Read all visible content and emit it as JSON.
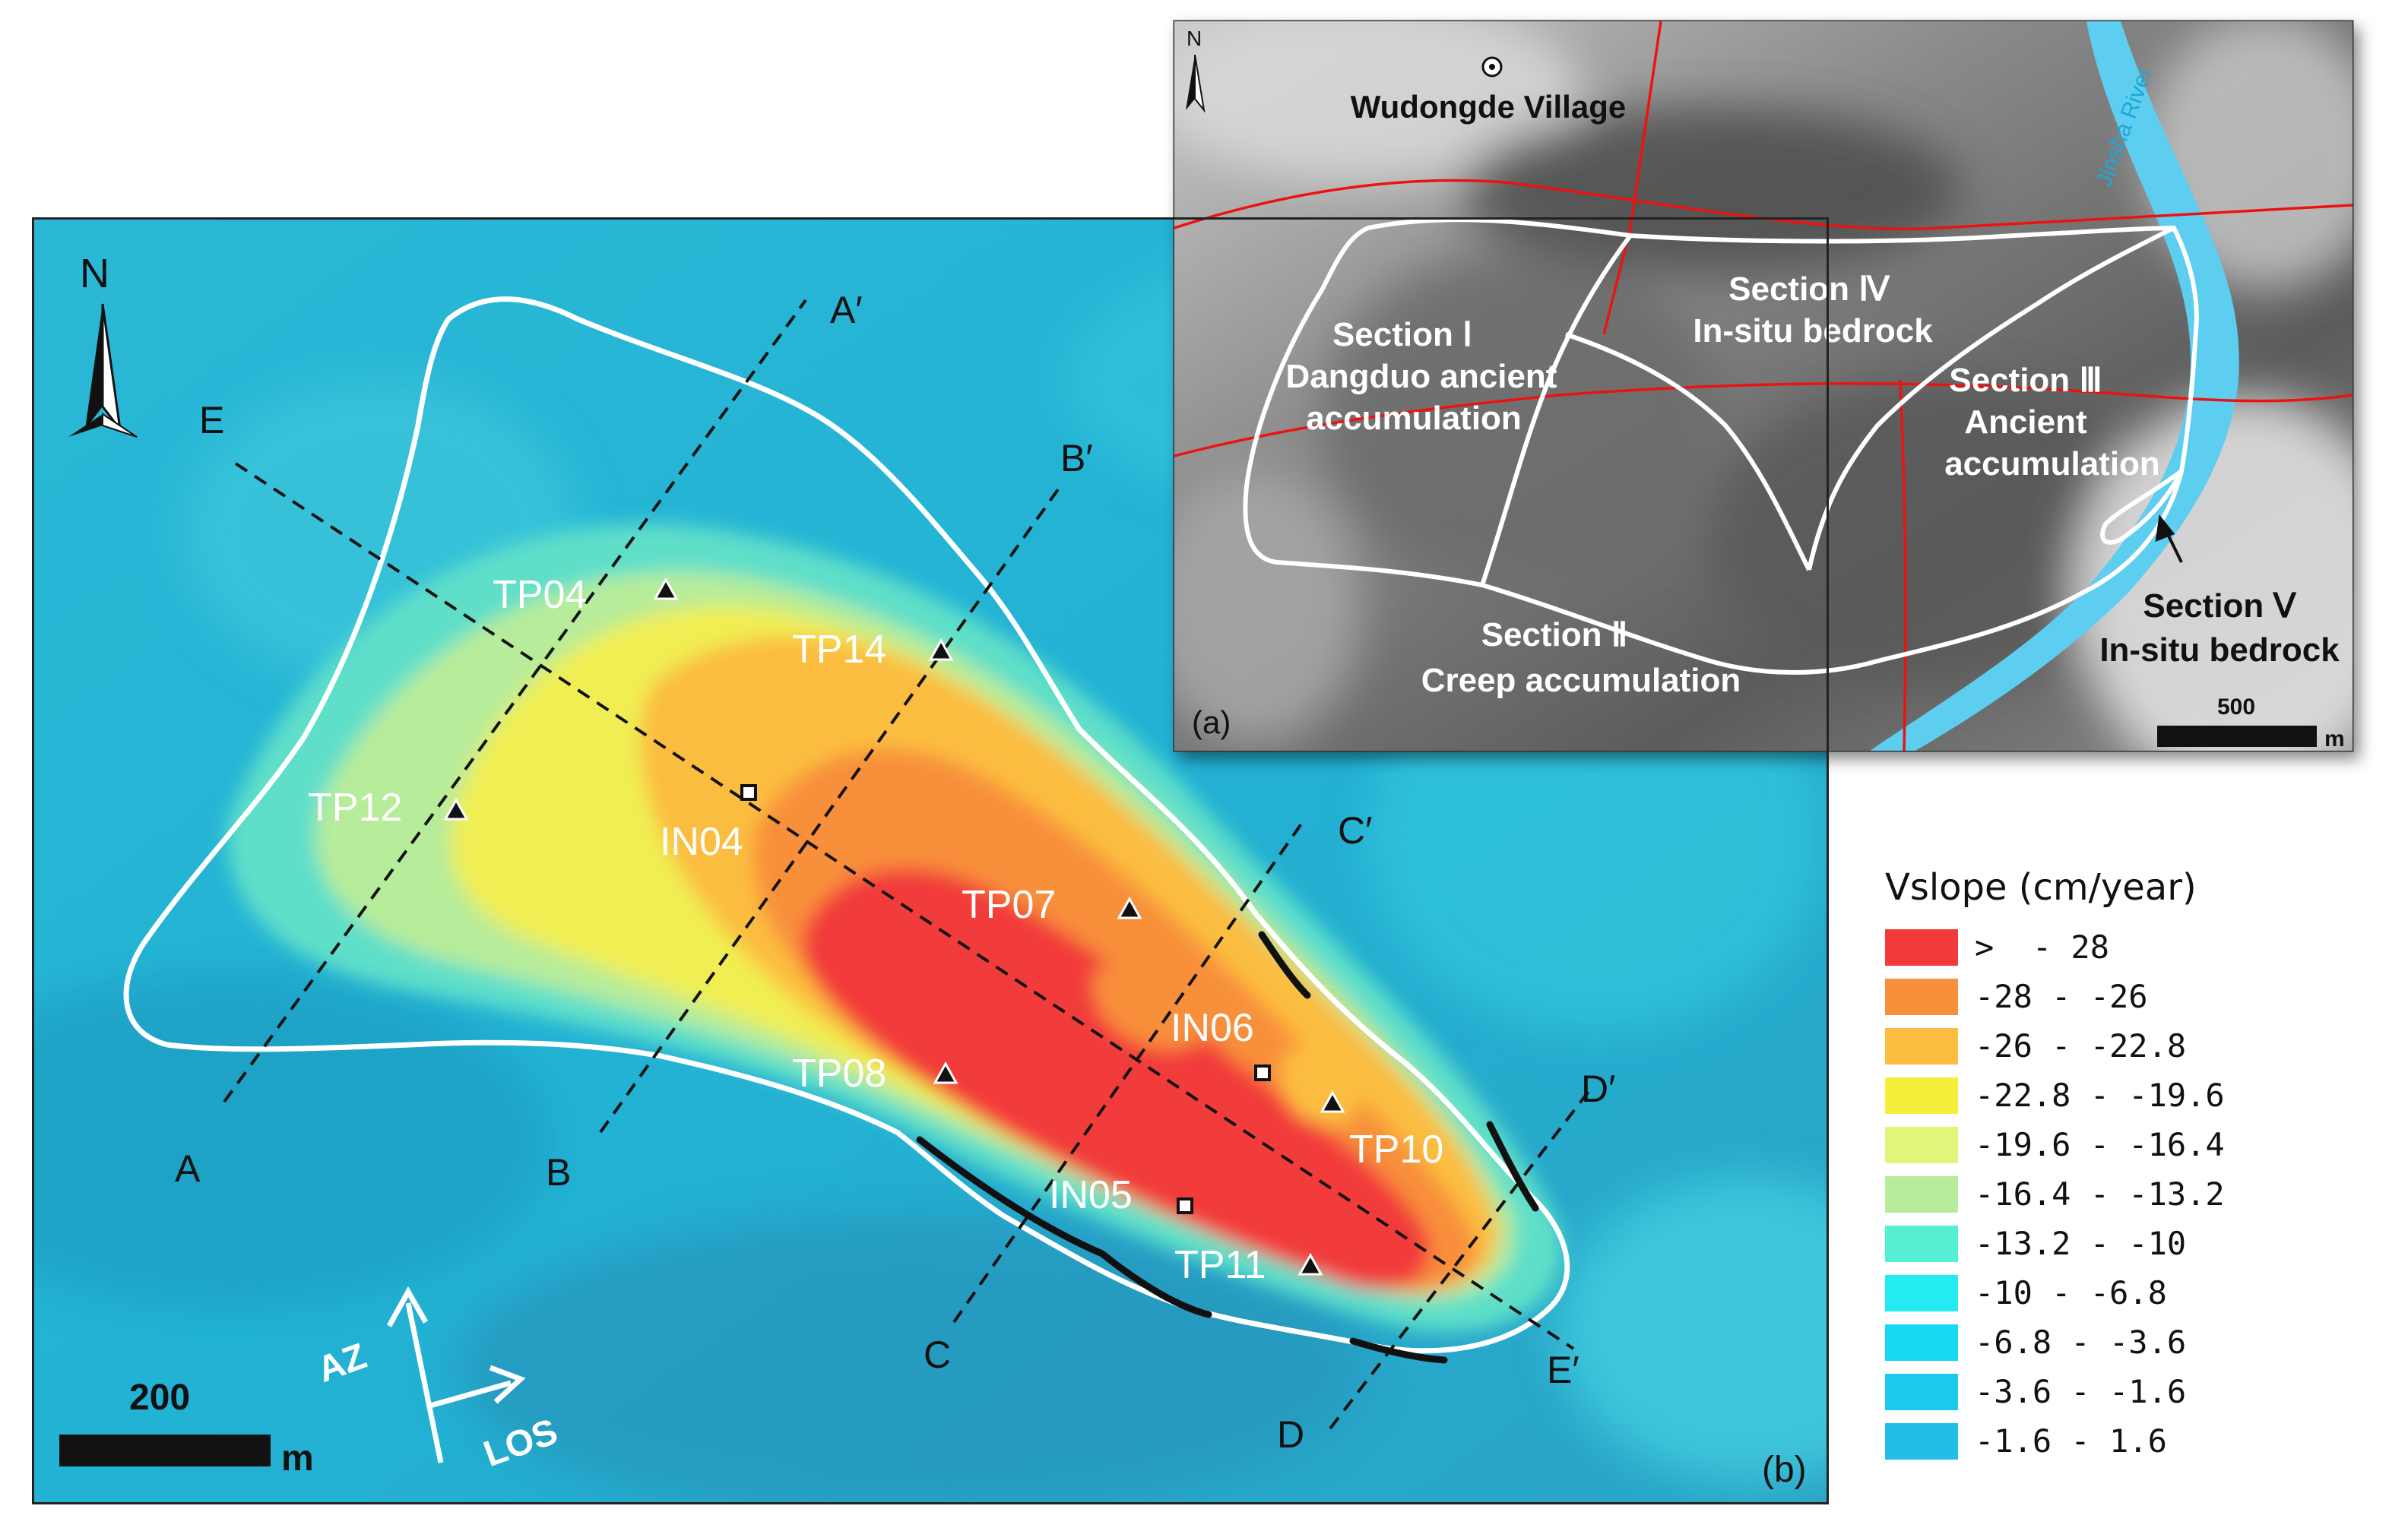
{
  "panel_b": {
    "panel_label": "(b)",
    "north_label": "N",
    "scale_value": "200",
    "scale_unit": "m",
    "az_label": "AZ",
    "los_label": "LOS",
    "profiles": [
      {
        "start": "A",
        "end": "A′"
      },
      {
        "start": "B",
        "end": "B′"
      },
      {
        "start": "C",
        "end": "C′"
      },
      {
        "start": "D",
        "end": "D′"
      },
      {
        "start": "E",
        "end": "E′"
      }
    ],
    "tps": [
      "TP04",
      "TP14",
      "TP12",
      "TP07",
      "TP08",
      "TP10",
      "TP11"
    ],
    "ins": [
      "IN04",
      "IN06",
      "IN05"
    ]
  },
  "legend": {
    "title": "Vslope (cm/year)",
    "items": [
      {
        "label": ">  - 28",
        "color": "#f23a3a"
      },
      {
        "label": "-28 - -26",
        "color": "#f88f3a"
      },
      {
        "label": "-26 - -22.8",
        "color": "#fbbd40"
      },
      {
        "label": "-22.8 - -19.6",
        "color": "#f5ee3a"
      },
      {
        "label": "-19.6 - -16.4",
        "color": "#e2f57a"
      },
      {
        "label": "-16.4 - -13.2",
        "color": "#b7ec9a"
      },
      {
        "label": "-13.2 - -10",
        "color": "#55f0d4"
      },
      {
        "label": "-10 - -6.8",
        "color": "#22ebf2"
      },
      {
        "label": "-6.8 - -3.6",
        "color": "#17d9f2"
      },
      {
        "label": "-3.6 - -1.6",
        "color": "#1bc9ef"
      },
      {
        "label": "-1.6 - 1.6",
        "color": "#22bee8"
      }
    ]
  },
  "panel_a": {
    "panel_label": "(a)",
    "north_label": "N",
    "village": "Wudongde Village",
    "river": "Jinsha River",
    "scale_value": "500",
    "scale_unit": "m",
    "sections": [
      {
        "name": "Section Ⅰ",
        "desc1": "Dangduo ancient",
        "desc2": "accumulation"
      },
      {
        "name": "Section Ⅱ",
        "desc1": "Creep accumulation",
        "desc2": ""
      },
      {
        "name": "Section Ⅲ",
        "desc1": "Ancient",
        "desc2": "accumulation"
      },
      {
        "name": "Section Ⅳ",
        "desc1": "In-situ bedrock",
        "desc2": ""
      },
      {
        "name": "Section Ⅴ",
        "desc1": "In-situ bedrock",
        "desc2": ""
      }
    ]
  }
}
